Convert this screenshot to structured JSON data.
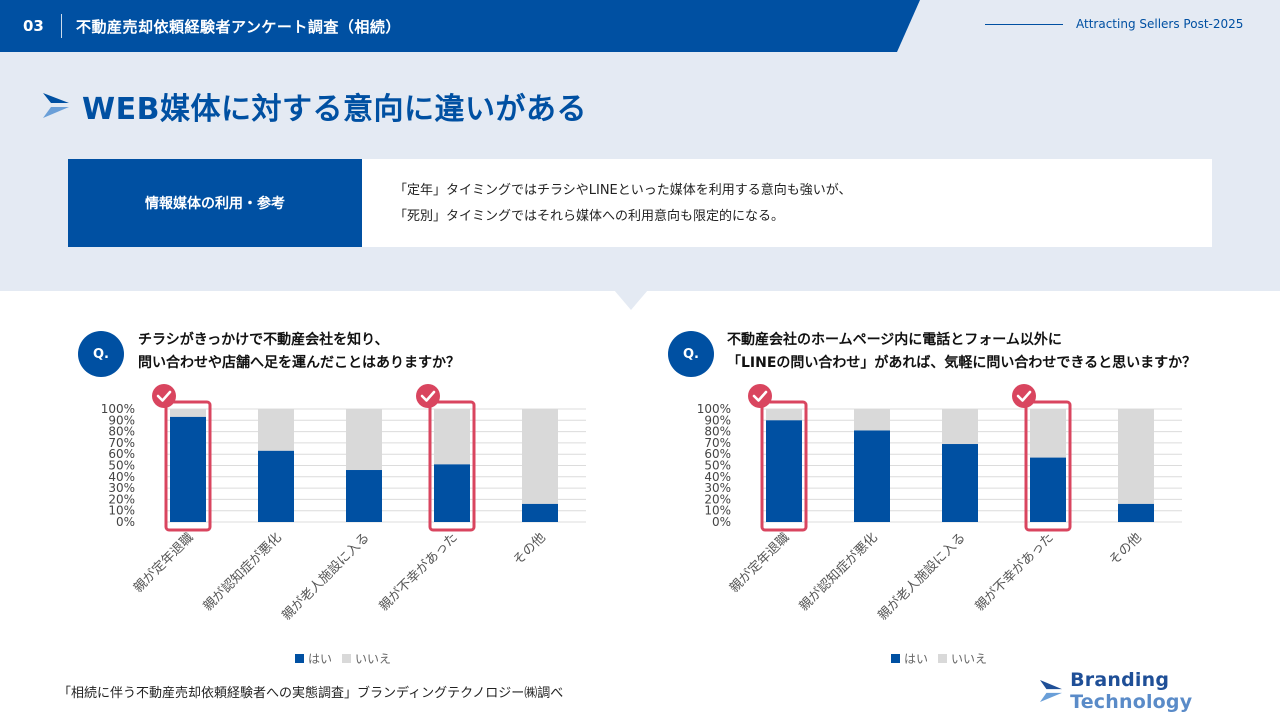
{
  "header": {
    "section_number": "03",
    "title": "不動産売却依頼経験者アンケート調査（相続）",
    "right_label": "Attracting Sellers Post-2025"
  },
  "slide_title": "WEB媒体に対する意向に違いがある",
  "info": {
    "label": "情報媒体の利用・参考",
    "line1": "「定年」タイミングではチラシやLINEといった媒体を利用する意向も強いが、",
    "line2": "「死別」タイミングではそれら媒体への利用意向も限定的になる。"
  },
  "questions": [
    {
      "badge": "Q.",
      "line1": "チラシがきっかけで不動産会社を知り、",
      "line2": "問い合わせや店舗へ足を運んだことはありますか？"
    },
    {
      "badge": "Q.",
      "line1": "不動産会社のホームページ内に電話とフォーム以外に",
      "line2": "「LINEの問い合わせ」があれば、気軽に問い合わせできると思いますか？"
    }
  ],
  "legend": {
    "yes": "はい",
    "no": "いいえ"
  },
  "colors": {
    "yes": "#0050a2",
    "no": "#d9d9d9",
    "highlight": "#d9455f",
    "grid": "#dcdcdc"
  },
  "chart_data": [
    {
      "type": "bar",
      "stacked": true,
      "categories": [
        "親が定年退職",
        "親が認知症が悪化",
        "親が老人施設に入る",
        "親が不幸があった",
        "その他"
      ],
      "series": [
        {
          "name": "はい",
          "values": [
            93,
            63,
            46,
            51,
            16
          ]
        },
        {
          "name": "いいえ",
          "values": [
            7,
            37,
            54,
            49,
            84
          ]
        }
      ],
      "y_ticks": [
        "0%",
        "10%",
        "20%",
        "30%",
        "40%",
        "50%",
        "60%",
        "70%",
        "80%",
        "90%",
        "100%"
      ],
      "ylim": [
        0,
        100
      ],
      "highlighted_categories": [
        "親が定年退職",
        "親が不幸があった"
      ],
      "legend": "bottom"
    },
    {
      "type": "bar",
      "stacked": true,
      "categories": [
        "親が定年退職",
        "親が認知症が悪化",
        "親が老人施設に入る",
        "親が不幸があった",
        "その他"
      ],
      "series": [
        {
          "name": "はい",
          "values": [
            90,
            81,
            69,
            57,
            16
          ]
        },
        {
          "name": "いいえ",
          "values": [
            10,
            19,
            31,
            43,
            84
          ]
        }
      ],
      "y_ticks": [
        "0%",
        "10%",
        "20%",
        "30%",
        "40%",
        "50%",
        "60%",
        "70%",
        "80%",
        "90%",
        "100%"
      ],
      "ylim": [
        0,
        100
      ],
      "highlighted_categories": [
        "親が定年退職",
        "親が不幸があった"
      ],
      "legend": "bottom"
    }
  ],
  "footer": {
    "source": "「相続に伴う不動産売却依頼経験者への実態調査」ブランディングテクノロジー㈱調べ",
    "brand_a": "Branding",
    "brand_b": "Technology"
  }
}
